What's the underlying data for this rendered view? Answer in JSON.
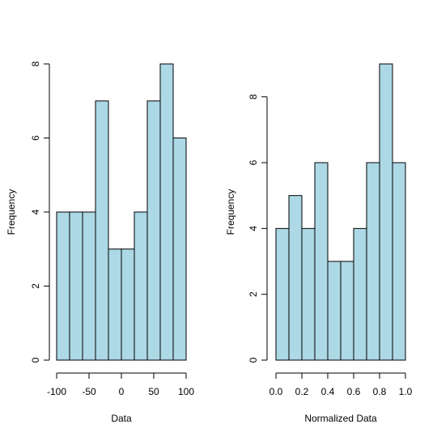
{
  "bar_fill": "#add8e6",
  "bar_stroke": "#000000",
  "chart_data": [
    {
      "type": "bar",
      "title": "",
      "xlabel": "Data",
      "ylabel": "Frequency",
      "bin_edges": [
        -100,
        -80,
        -60,
        -40,
        -20,
        0,
        20,
        40,
        60,
        80,
        100
      ],
      "values": [
        4,
        4,
        4,
        7,
        3,
        3,
        4,
        7,
        8,
        6
      ],
      "xlim": [
        -100,
        100
      ],
      "ylim": [
        0,
        8
      ],
      "xticks": [
        -100,
        -50,
        0,
        50,
        100
      ],
      "xtick_labels": [
        "-100",
        "-50",
        "0",
        "50",
        "100"
      ],
      "yticks": [
        0,
        2,
        4,
        6,
        8
      ],
      "ytick_labels": [
        "0",
        "2",
        "4",
        "6",
        "8"
      ],
      "grid": false
    },
    {
      "type": "bar",
      "title": "",
      "xlabel": "Normalized Data",
      "ylabel": "Frequency",
      "bin_edges": [
        0.0,
        0.1,
        0.2,
        0.3,
        0.4,
        0.5,
        0.6,
        0.7,
        0.8,
        0.9,
        1.0
      ],
      "values": [
        4,
        5,
        4,
        6,
        3,
        3,
        4,
        6,
        9,
        6
      ],
      "xlim": [
        0,
        1
      ],
      "ylim": [
        0,
        9
      ],
      "xticks": [
        0.0,
        0.2,
        0.4,
        0.6,
        0.8,
        1.0
      ],
      "xtick_labels": [
        "0.0",
        "0.2",
        "0.4",
        "0.6",
        "0.8",
        "1.0"
      ],
      "yticks": [
        0,
        2,
        4,
        6,
        8
      ],
      "ytick_labels": [
        "0",
        "2",
        "4",
        "6",
        "8"
      ],
      "grid": false
    }
  ]
}
